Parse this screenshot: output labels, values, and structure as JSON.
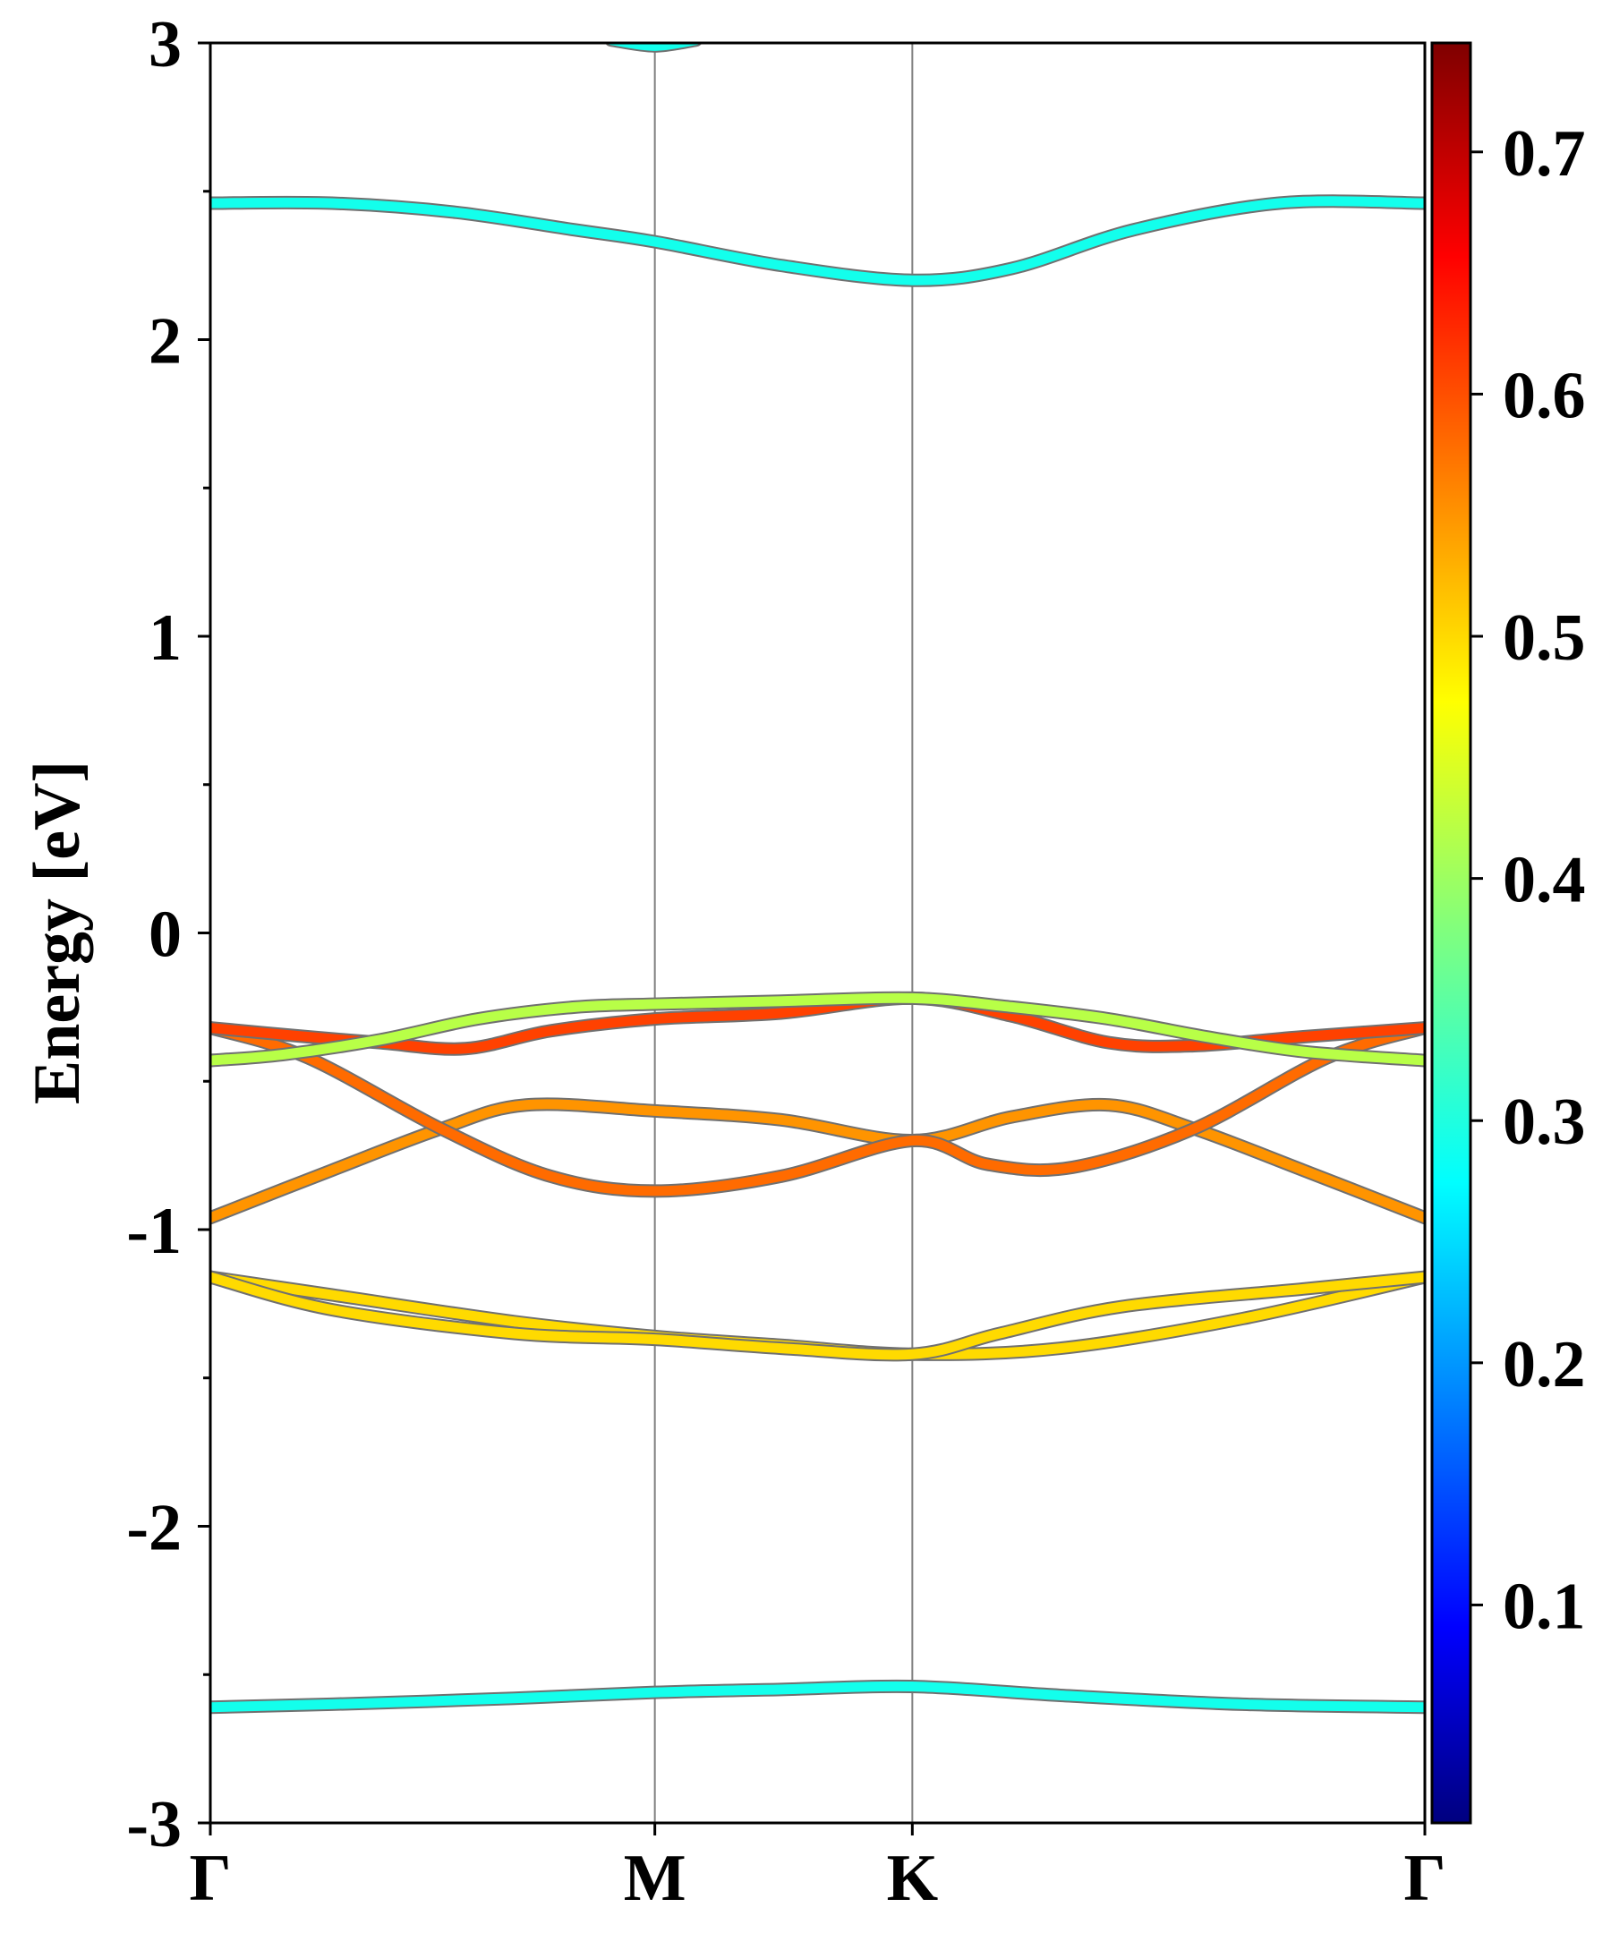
{
  "chart_data": {
    "type": "line",
    "title": "",
    "ylabel": "Energy [eV]",
    "xlabel": "",
    "ylim": [
      -3,
      3
    ],
    "y_ticks": [
      "3",
      "2",
      "1",
      "0",
      "-1",
      "-2",
      "-3"
    ],
    "x_ticks": [
      {
        "label": "Γ",
        "k": 0.0
      },
      {
        "label": "M",
        "k": 0.366
      },
      {
        "label": "K",
        "k": 0.578
      },
      {
        "label": "Γ",
        "k": 1.0
      }
    ],
    "xlim": [
      0,
      1
    ],
    "grid": "vertical lines at high-symmetry points",
    "colorbar": {
      "colormap": "jet",
      "range": [
        0.01,
        0.745
      ],
      "tick_labels": [
        "0.1",
        "0.2",
        "0.3",
        "0.4",
        "0.5",
        "0.6",
        "0.7"
      ],
      "tick_values": [
        0.1,
        0.2,
        0.3,
        0.4,
        0.5,
        0.6,
        0.7
      ]
    },
    "series": [
      {
        "weight": 0.29,
        "points": [
          [
            0,
            -2.61
          ],
          [
            0.1,
            -2.6
          ],
          [
            0.25,
            -2.58
          ],
          [
            0.366,
            -2.56
          ],
          [
            0.47,
            -2.55
          ],
          [
            0.578,
            -2.54
          ],
          [
            0.7,
            -2.57
          ],
          [
            0.85,
            -2.6
          ],
          [
            1.0,
            -2.61
          ]
        ]
      },
      {
        "weight": 0.5,
        "points": [
          [
            0,
            -1.16
          ],
          [
            0.1,
            -1.22
          ],
          [
            0.25,
            -1.31
          ],
          [
            0.366,
            -1.36
          ],
          [
            0.47,
            -1.39
          ],
          [
            0.578,
            -1.42
          ],
          [
            0.7,
            -1.4
          ],
          [
            0.85,
            -1.3
          ],
          [
            1.0,
            -1.16
          ]
        ]
      },
      {
        "weight": 0.5,
        "points": [
          [
            0,
            -1.16
          ],
          [
            0.1,
            -1.27
          ],
          [
            0.25,
            -1.35
          ],
          [
            0.366,
            -1.37
          ],
          [
            0.47,
            -1.4
          ],
          [
            0.578,
            -1.42
          ],
          [
            0.65,
            -1.35
          ],
          [
            0.75,
            -1.26
          ],
          [
            0.9,
            -1.2
          ],
          [
            1.0,
            -1.16
          ]
        ]
      },
      {
        "weight": 0.55,
        "points": [
          [
            0,
            -0.96
          ],
          [
            0.1,
            -0.8
          ],
          [
            0.19,
            -0.66
          ],
          [
            0.26,
            -0.58
          ],
          [
            0.366,
            -0.6
          ],
          [
            0.47,
            -0.63
          ],
          [
            0.578,
            -0.7
          ],
          [
            0.66,
            -0.62
          ],
          [
            0.74,
            -0.58
          ],
          [
            0.81,
            -0.66
          ],
          [
            0.9,
            -0.8
          ],
          [
            1.0,
            -0.96
          ]
        ]
      },
      {
        "weight": 0.58,
        "points": [
          [
            0,
            -0.32
          ],
          [
            0.08,
            -0.42
          ],
          [
            0.19,
            -0.66
          ],
          [
            0.28,
            -0.82
          ],
          [
            0.366,
            -0.87
          ],
          [
            0.47,
            -0.82
          ],
          [
            0.578,
            -0.7
          ],
          [
            0.64,
            -0.78
          ],
          [
            0.71,
            -0.79
          ],
          [
            0.81,
            -0.66
          ],
          [
            0.92,
            -0.42
          ],
          [
            1.0,
            -0.32
          ]
        ]
      },
      {
        "weight": 0.61,
        "points": [
          [
            0,
            -0.32
          ],
          [
            0.08,
            -0.35
          ],
          [
            0.14,
            -0.37
          ],
          [
            0.21,
            -0.39
          ],
          [
            0.28,
            -0.33
          ],
          [
            0.366,
            -0.29
          ],
          [
            0.47,
            -0.27
          ],
          [
            0.578,
            -0.22
          ],
          [
            0.66,
            -0.28
          ],
          [
            0.74,
            -0.37
          ],
          [
            0.81,
            -0.38
          ],
          [
            0.9,
            -0.35
          ],
          [
            1.0,
            -0.32
          ]
        ]
      },
      {
        "weight": 0.42,
        "points": [
          [
            0,
            -0.43
          ],
          [
            0.06,
            -0.41
          ],
          [
            0.14,
            -0.36
          ],
          [
            0.22,
            -0.29
          ],
          [
            0.3,
            -0.25
          ],
          [
            0.366,
            -0.24
          ],
          [
            0.47,
            -0.23
          ],
          [
            0.578,
            -0.22
          ],
          [
            0.66,
            -0.25
          ],
          [
            0.74,
            -0.29
          ],
          [
            0.82,
            -0.35
          ],
          [
            0.9,
            -0.4
          ],
          [
            1.0,
            -0.43
          ]
        ]
      },
      {
        "weight": 0.29,
        "points": [
          [
            0,
            2.46
          ],
          [
            0.1,
            2.46
          ],
          [
            0.2,
            2.43
          ],
          [
            0.3,
            2.37
          ],
          [
            0.366,
            2.33
          ],
          [
            0.47,
            2.25
          ],
          [
            0.578,
            2.2
          ],
          [
            0.66,
            2.24
          ],
          [
            0.76,
            2.37
          ],
          [
            0.88,
            2.46
          ],
          [
            1.0,
            2.46
          ]
        ]
      },
      {
        "weight": 0.29,
        "points": [
          [
            0.33,
            3.01
          ],
          [
            0.366,
            2.99
          ],
          [
            0.4,
            3.01
          ]
        ]
      }
    ]
  }
}
